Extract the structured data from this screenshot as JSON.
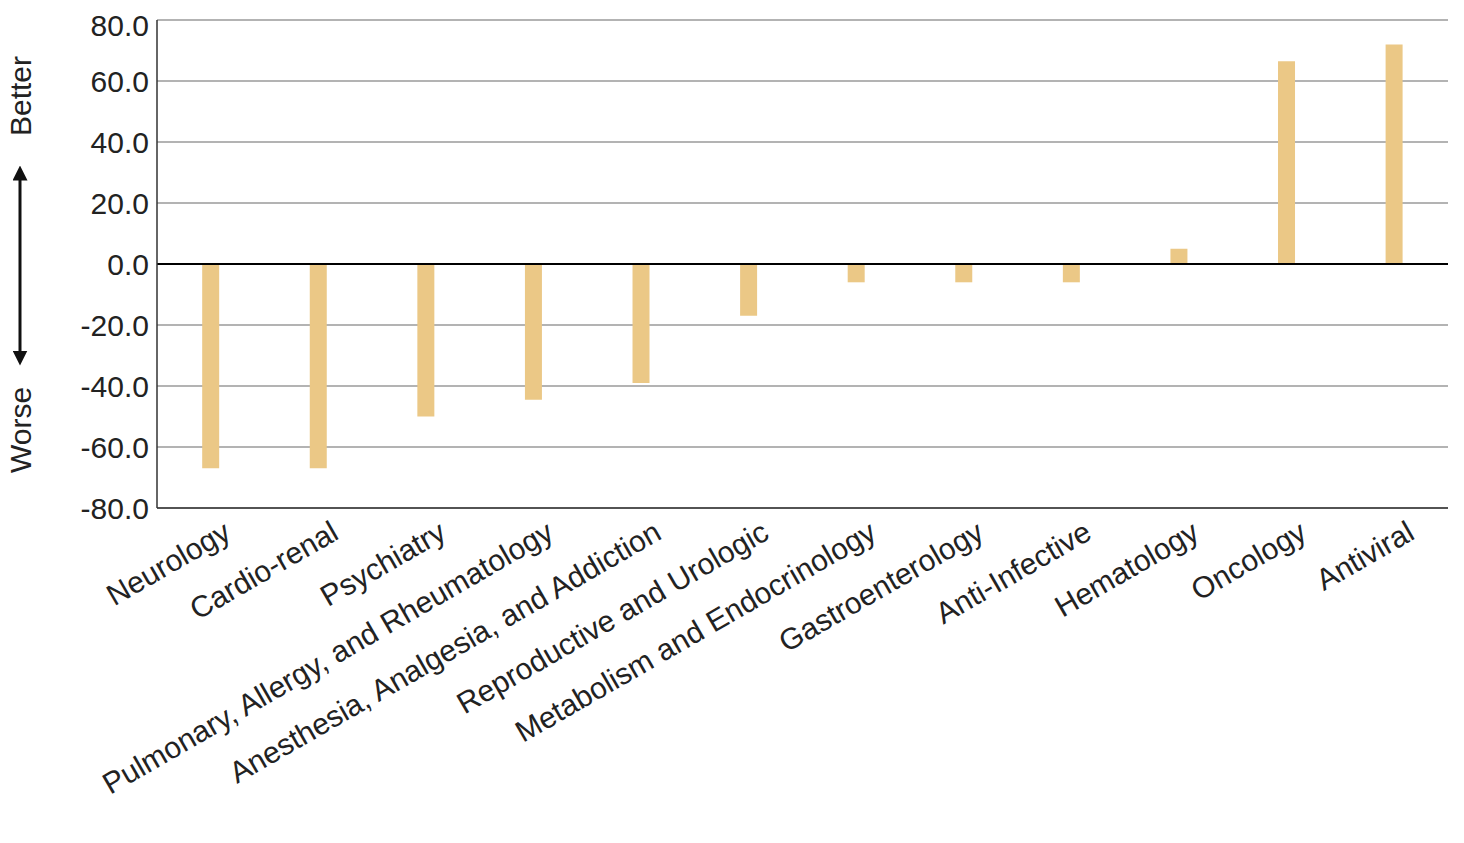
{
  "chart_data": {
    "type": "bar",
    "categories": [
      "Neurology",
      "Cardio-renal",
      "Psychiatry",
      "Pulmonary, Allergy, and Rheumatology",
      "Anesthesia, Analgesia, and Addiction",
      "Reproductive and Urologic",
      "Metabolism and Endocrinology",
      "Gastroenterology",
      "Anti-Infective",
      "Hematology",
      "Oncology",
      "Antiviral"
    ],
    "values": [
      -67,
      -67,
      -50,
      -44.5,
      -39,
      -17,
      -6,
      -6,
      -6,
      5,
      66.5,
      72
    ],
    "color": "#ebc886",
    "ylim": [
      -80,
      80
    ],
    "yticks": [
      {
        "value": -80,
        "label": "-80.0"
      },
      {
        "value": -60,
        "label": "-60.0"
      },
      {
        "value": -40,
        "label": "-40.0"
      },
      {
        "value": -20,
        "label": "-20.0"
      },
      {
        "value": 0,
        "label": "0.0"
      },
      {
        "value": 20,
        "label": "20.0"
      },
      {
        "value": 40,
        "label": "40.0"
      },
      {
        "value": 60,
        "label": "60.0"
      },
      {
        "value": 80,
        "label": "80.0"
      }
    ],
    "grid": true,
    "annotations": [
      "Better",
      "Worse"
    ]
  }
}
